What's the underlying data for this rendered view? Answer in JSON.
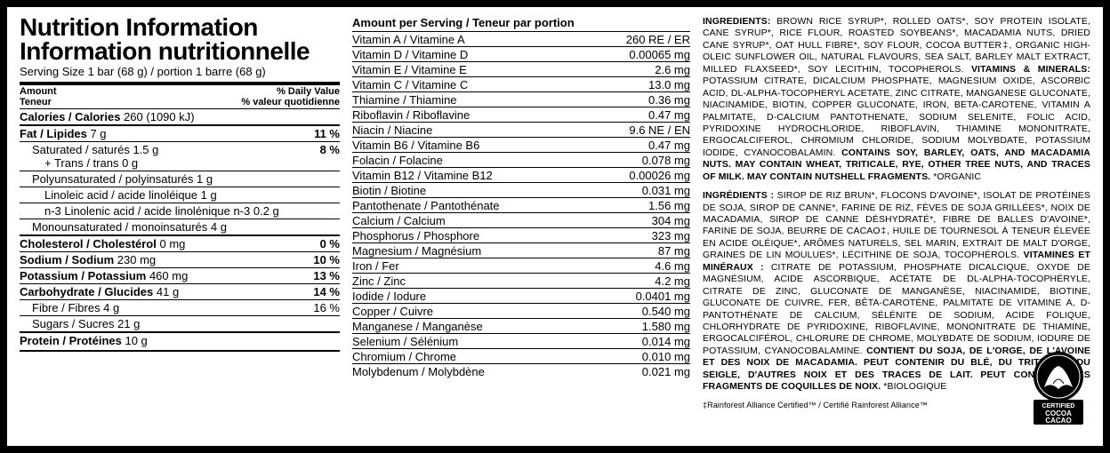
{
  "title_en": "Nutrition Information",
  "title_fr": "Information nutritionnelle",
  "serving": "Serving Size 1 bar (68 g) / portion 1 barre (68 g)",
  "amount_hdr_l": "Amount\nTeneur",
  "amount_hdr_r": "% Daily Value\n% valeur quotidienne",
  "calories": "Calories / Calories 260 (1090 kJ)",
  "main_rows": [
    {
      "l": "Fat / Lipides 7 g",
      "r": "11 %",
      "b": 1,
      "t": "med"
    },
    {
      "l": "Saturated / saturés 1.5 g",
      "r": "",
      "ind": 1,
      "t": "thin"
    },
    {
      "l": "+ Trans / trans 0 g",
      "r": "8 %",
      "ind": 1,
      "merge_up": 1
    },
    {
      "l": "Polyunsaturated / polyinsaturés 1 g",
      "r": "",
      "ind": 1,
      "t": "thin"
    },
    {
      "l": "Linoleic acid / acide linoléique 1 g",
      "r": "",
      "ind": 2,
      "t": "thin"
    },
    {
      "l": "n-3 Linolenic acid / acide linolénique n-3 0.2 g",
      "r": "",
      "ind": 2,
      "t": "thin"
    },
    {
      "l": "Monounsaturated / monoinsaturés 4 g",
      "r": "",
      "ind": 1,
      "t": "thin"
    },
    {
      "l": "Cholesterol / Cholestérol 0 mg",
      "r": "0 %",
      "b": 1,
      "t": "med"
    },
    {
      "l": "Sodium / Sodium 230 mg",
      "r": "10 %",
      "b": 1,
      "t": "thin"
    },
    {
      "l": "Potassium / Potassium 460 mg",
      "r": "13 %",
      "b": 1,
      "t": "thin"
    },
    {
      "l": "Carbohydrate / Glucides 41 g",
      "r": "14 %",
      "b": 1,
      "t": "thin"
    },
    {
      "l": "Fibre / Fibres 4 g",
      "r": "16 %",
      "ind": 1,
      "t": "thin"
    },
    {
      "l": "Sugars / Sucres 21 g",
      "r": "",
      "ind": 1,
      "t": "thin"
    },
    {
      "l": "Protein / Protéines 10 g",
      "r": "",
      "b": 1,
      "t": "med"
    }
  ],
  "vit_hdr": "Amount per Serving / Teneur par portion",
  "vitamins": [
    {
      "l": "Vitamin A / Vitamine A",
      "r": "260 RE / ER"
    },
    {
      "l": "Vitamin D / Vitamine D",
      "r": "0.00065 mg"
    },
    {
      "l": "Vitamin E / Vitamine E",
      "r": "2.6 mg"
    },
    {
      "l": "Vitamin C / Vitamine C",
      "r": "13.0 mg"
    },
    {
      "l": "Thiamine / Thiamine",
      "r": "0.36 mg"
    },
    {
      "l": "Riboflavin / Riboflavine",
      "r": "0.47 mg"
    },
    {
      "l": "Niacin / Niacine",
      "r": "9.6 NE / EN"
    },
    {
      "l": "Vitamin B6 / Vitamine B6",
      "r": "0.47 mg"
    },
    {
      "l": "Folacin / Folacine",
      "r": "0.078 mg"
    },
    {
      "l": "Vitamin B12 / Vitamine B12",
      "r": "0.00026 mg"
    },
    {
      "l": "Biotin / Biotine",
      "r": "0.031 mg"
    },
    {
      "l": "Pantothenate / Pantothénate",
      "r": "1.56 mg"
    },
    {
      "l": "Calcium / Calcium",
      "r": "304 mg"
    },
    {
      "l": "Phosphorus / Phosphore",
      "r": "323 mg"
    },
    {
      "l": "Magnesium / Magnésium",
      "r": "87 mg"
    },
    {
      "l": "Iron / Fer",
      "r": "4.6 mg"
    },
    {
      "l": "Zinc / Zinc",
      "r": "4.2 mg"
    },
    {
      "l": "Iodide / Iodure",
      "r": "0.0401 mg"
    },
    {
      "l": "Copper / Cuivre",
      "r": "0.540 mg"
    },
    {
      "l": "Manganese / Manganèse",
      "r": "1.580 mg"
    },
    {
      "l": "Selenium / Sélénium",
      "r": "0.014 mg"
    },
    {
      "l": "Chromium / Chrome",
      "r": "0.010 mg"
    },
    {
      "l": "Molybdenum / Molybdène",
      "r": "0.021 mg"
    }
  ],
  "ing_en_hd": "INGREDIENTS:",
  "ing_en": " BROWN RICE SYRUP*, ROLLED OATS*, SOY PROTEIN ISOLATE, CANE SYRUP*, RICE FLOUR, ROASTED SOYBEANS*, MACADAMIA NUTS, DRIED CANE SYRUP*, OAT HULL FIBRE*, SOY FLOUR, COCOA BUTTER‡, ORGANIC HIGH-OLEIC SUNFLOWER OIL, NATURAL FLAVOURS, SEA SALT, BARLEY MALT EXTRACT, MILLED FLAXSEED*, SOY LECITHIN, TOCOPHEROLS. ",
  "vm_en_hd": "VITAMINS & MINERALS:",
  "vm_en": " POTASSIUM CITRATE, DICALCIUM PHOSPHATE, MAGNESIUM OXIDE, ASCORBIC ACID, DL-ALPHA-TOCOPHERYL ACETATE, ZINC CITRATE, MANGANESE GLUCONATE, NIACINAMIDE, BIOTIN, COPPER GLUCONATE, IRON, BETA-CAROTENE, VITAMIN A PALMITATE, D-CALCIUM PANTOTHENATE, SODIUM SELENITE, FOLIC ACID, PYRIDOXINE HYDROCHLORIDE, RIBOFLAVIN, THIAMINE MONONITRATE, ERGOCALCIFEROL, CHROMIUM CHLORIDE, SODIUM MOLYBDATE, POTASSIUM IODIDE, CYANOCOBALAMIN. ",
  "contains_en": "CONTAINS SOY, BARLEY, OATS, AND MACADAMIA NUTS. MAY CONTAIN WHEAT, TRITICALE, RYE, OTHER TREE NUTS, AND TRACES OF MILK. MAY CONTAIN NUTSHELL FRAGMENTS. ",
  "organic_en": "*ORGANIC",
  "ing_fr_hd": "INGRÉDIENTS :",
  "ing_fr": " SIROP DE RIZ BRUN*, FLOCONS D'AVOINE*, ISOLAT DE PROTÉINES DE SOJA, SIROP DE CANNE*, FARINE DE RIZ, FÈVES DE SOJA GRILLÉES*, NOIX DE MACADAMIA, SIROP DE CANNE DÉSHYDRATÉ*, FIBRE DE BALLES D'AVOINE*, FARINE DE SOJA, BEURRE DE CACAO‡, HUILE DE TOURNESOL À TENEUR ÉLEVÉE EN ACIDE OLÉIQUE*, ARÔMES NATURELS, SEL MARIN, EXTRAIT DE MALT D'ORGE, GRAINES DE LIN MOULUES*, LÉCITHINE DE SOJA, TOCOPHÉROLS. ",
  "vm_fr_hd": "VITAMINES ET MINÉRAUX :",
  "vm_fr": " CITRATE DE POTASSIUM, PHOSPHATE DICALCIQUE, OXYDE DE MAGNÉSIUM, ACIDE ASCORBIQUE, ACÉTATE DE DL-ALPHA-TOCOPHÉRYLE, CITRATE DE ZINC, GLUCONATE DE MANGANÈSE, NIACINAMIDE, BIOTINE, GLUCONATE DE CUIVRE, FER, BÊTA-CAROTÈNE, PALMITATE DE VITAMINE A, D-PANTOTHÉNATE DE CALCIUM, SÉLÉNITE DE SODIUM, ACIDE FOLIQUE, CHLORHYDRATE DE PYRIDOXINE, RIBOFLAVINE, MONONITRATE DE THIAMINE, ERGOCALCIFÉROL, CHLORURE DE CHROME, MOLYBDATE DE SODIUM, IODURE DE POTASSIUM, CYANOCOBALAMINE. ",
  "contains_fr": "CONTIENT DU SOJA, DE L'ORGE, DE L'AVOINE ET DES NOIX DE MACADAMIA. PEUT CONTENIR DU BLÉ, DU TRITICALE, DU SEIGLE, D'AUTRES NOIX ET DES TRACES DE LAIT. PEUT CONTENIR DES FRAGMENTS DE COQUILLES DE NOIX. ",
  "organic_fr": "*BIOLOGIQUE",
  "footnote": "‡Rainforest Alliance Certified™ / Certifié Rainforest Alliance™",
  "cert_top": "CERTIFIED",
  "cert_mid": "COCOA",
  "cert_bot": "CACAO"
}
